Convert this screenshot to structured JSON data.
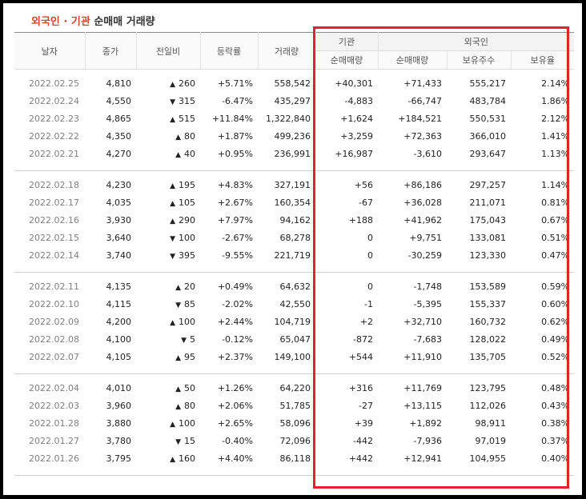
{
  "title": {
    "part1": "외국인 · 기관",
    "part2": "순매매 거래량"
  },
  "headers": {
    "date": "날자",
    "close": "종가",
    "change": "전일비",
    "rate": "등락률",
    "volume": "거래량",
    "inst_group": "기관",
    "foreign_group": "외국인",
    "inst_net": "순매매량",
    "foreign_net": "순매매량",
    "foreign_hold": "보유주수",
    "foreign_ratio": "보유율"
  },
  "colors": {
    "up": "#d42a2a",
    "down": "#2b66b3",
    "highlight_box": "#e2232c"
  },
  "groups": [
    [
      {
        "date": "2022.02.25",
        "close": "4,810",
        "dir": "up",
        "change": "260",
        "rate": "+5.71%",
        "volume": "558,542",
        "inst": "+40,301",
        "foreign": "+71,433",
        "hold": "555,217",
        "ratio": "2.14%"
      },
      {
        "date": "2022.02.24",
        "close": "4,550",
        "dir": "down",
        "change": "315",
        "rate": "-6.47%",
        "volume": "435,297",
        "inst": "-4,883",
        "foreign": "-66,747",
        "hold": "483,784",
        "ratio": "1.86%"
      },
      {
        "date": "2022.02.23",
        "close": "4,865",
        "dir": "up",
        "change": "515",
        "rate": "+11.84%",
        "volume": "1,322,840",
        "inst": "+1,624",
        "foreign": "+184,521",
        "hold": "550,531",
        "ratio": "2.12%"
      },
      {
        "date": "2022.02.22",
        "close": "4,350",
        "dir": "up",
        "change": "80",
        "rate": "+1.87%",
        "volume": "499,236",
        "inst": "+3,259",
        "foreign": "+72,363",
        "hold": "366,010",
        "ratio": "1.41%"
      },
      {
        "date": "2022.02.21",
        "close": "4,270",
        "dir": "up",
        "change": "40",
        "rate": "+0.95%",
        "volume": "236,991",
        "inst": "+16,987",
        "foreign": "-3,610",
        "hold": "293,647",
        "ratio": "1.13%"
      }
    ],
    [
      {
        "date": "2022.02.18",
        "close": "4,230",
        "dir": "up",
        "change": "195",
        "rate": "+4.83%",
        "volume": "327,191",
        "inst": "+56",
        "foreign": "+86,186",
        "hold": "297,257",
        "ratio": "1.14%"
      },
      {
        "date": "2022.02.17",
        "close": "4,035",
        "dir": "up",
        "change": "105",
        "rate": "+2.67%",
        "volume": "160,354",
        "inst": "-67",
        "foreign": "+36,028",
        "hold": "211,071",
        "ratio": "0.81%"
      },
      {
        "date": "2022.02.16",
        "close": "3,930",
        "dir": "up",
        "change": "290",
        "rate": "+7.97%",
        "volume": "94,162",
        "inst": "+188",
        "foreign": "+41,962",
        "hold": "175,043",
        "ratio": "0.67%"
      },
      {
        "date": "2022.02.15",
        "close": "3,640",
        "dir": "down",
        "change": "100",
        "rate": "-2.67%",
        "volume": "68,278",
        "inst": "0",
        "foreign": "+9,751",
        "hold": "133,081",
        "ratio": "0.51%"
      },
      {
        "date": "2022.02.14",
        "close": "3,740",
        "dir": "down",
        "change": "395",
        "rate": "-9.55%",
        "volume": "221,719",
        "inst": "0",
        "foreign": "-30,259",
        "hold": "123,330",
        "ratio": "0.47%"
      }
    ],
    [
      {
        "date": "2022.02.11",
        "close": "4,135",
        "dir": "up",
        "change": "20",
        "rate": "+0.49%",
        "volume": "64,632",
        "inst": "0",
        "foreign": "-1,748",
        "hold": "153,589",
        "ratio": "0.59%"
      },
      {
        "date": "2022.02.10",
        "close": "4,115",
        "dir": "down",
        "change": "85",
        "rate": "-2.02%",
        "volume": "42,550",
        "inst": "-1",
        "foreign": "-5,395",
        "hold": "155,337",
        "ratio": "0.60%"
      },
      {
        "date": "2022.02.09",
        "close": "4,200",
        "dir": "up",
        "change": "100",
        "rate": "+2.44%",
        "volume": "104,719",
        "inst": "+2",
        "foreign": "+32,710",
        "hold": "160,732",
        "ratio": "0.62%"
      },
      {
        "date": "2022.02.08",
        "close": "4,100",
        "dir": "down",
        "change": "5",
        "rate": "-0.12%",
        "volume": "65,047",
        "inst": "-872",
        "foreign": "-7,683",
        "hold": "128,022",
        "ratio": "0.49%"
      },
      {
        "date": "2022.02.07",
        "close": "4,105",
        "dir": "up",
        "change": "95",
        "rate": "+2.37%",
        "volume": "149,100",
        "inst": "+544",
        "foreign": "+11,910",
        "hold": "135,705",
        "ratio": "0.52%"
      }
    ],
    [
      {
        "date": "2022.02.04",
        "close": "4,010",
        "dir": "up",
        "change": "50",
        "rate": "+1.26%",
        "volume": "64,220",
        "inst": "+316",
        "foreign": "+11,769",
        "hold": "123,795",
        "ratio": "0.48%"
      },
      {
        "date": "2022.02.03",
        "close": "3,960",
        "dir": "up",
        "change": "80",
        "rate": "+2.06%",
        "volume": "51,785",
        "inst": "-27",
        "foreign": "+13,115",
        "hold": "112,026",
        "ratio": "0.43%"
      },
      {
        "date": "2022.01.28",
        "close": "3,880",
        "dir": "up",
        "change": "100",
        "rate": "+2.65%",
        "volume": "58,096",
        "inst": "+39",
        "foreign": "+1,892",
        "hold": "98,911",
        "ratio": "0.38%"
      },
      {
        "date": "2022.01.27",
        "close": "3,780",
        "dir": "down",
        "change": "15",
        "rate": "-0.40%",
        "volume": "72,096",
        "inst": "-442",
        "foreign": "-7,936",
        "hold": "97,019",
        "ratio": "0.37%"
      },
      {
        "date": "2022.01.26",
        "close": "3,795",
        "dir": "up",
        "change": "160",
        "rate": "+4.40%",
        "volume": "86,118",
        "inst": "+442",
        "foreign": "+12,941",
        "hold": "104,955",
        "ratio": "0.40%"
      }
    ]
  ]
}
